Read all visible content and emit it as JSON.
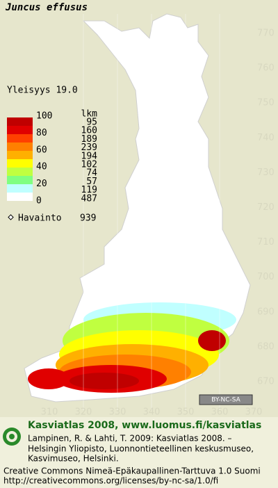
{
  "map": {
    "species": "Juncus effusus",
    "frequency": "Yleisyys  19.0",
    "y_grid_labels": [
      "770",
      "760",
      "750",
      "740",
      "730",
      "720",
      "710",
      "700",
      "690",
      "680",
      "670"
    ],
    "x_grid_labels": [
      "310",
      "320",
      "330",
      "340",
      "350",
      "360",
      "370"
    ],
    "legend": {
      "scale_labels": [
        "100",
        "80",
        "60",
        "40",
        "20",
        "0"
      ],
      "colors": [
        "#c00000",
        "#e00000",
        "#ff4000",
        "#ff8000",
        "#ffb000",
        "#ffff00",
        "#c0ff40",
        "#80ff80",
        "#c0ffff",
        "#ffffff"
      ],
      "count_header": "lkm",
      "counts": [
        95,
        160,
        189,
        239,
        194,
        102,
        74,
        57,
        119,
        487
      ],
      "observation_label": "Havainto",
      "observation_count": 939
    },
    "license_badge": "BY-NC-SA"
  },
  "footer": {
    "heading": "Kasviatlas 2008, www.luomus.fi/kasviatlas",
    "citation_line1": "Lampinen, R. & Lahti, T. 2009: Kasviatlas 2008. –",
    "citation_line2": "Helsingin Yliopisto, Luonnontieteellinen keskusmuseo,",
    "citation_line3": "Kasvimuseo, Helsinki.",
    "license_line1": "Creative Commons Nimeä-Epäkaupallinen-Tarttuva 1.0 Suomi",
    "license_line2": "http://creativecommons.org/licenses/by-nc-sa/1.0/fi"
  }
}
